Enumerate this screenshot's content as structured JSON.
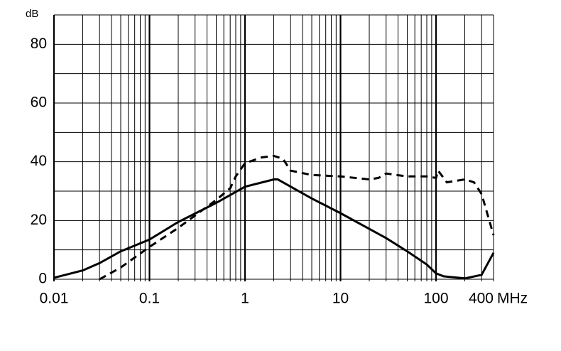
{
  "chart_data": {
    "type": "line",
    "x_unit": "MHz",
    "y_unit": "dB",
    "log_x": true,
    "xlim": [
      0.01,
      400
    ],
    "ylim": [
      0,
      90
    ],
    "xticks": [
      0.01,
      0.1,
      1,
      10,
      100,
      400
    ],
    "yticks": [
      0,
      20,
      40,
      60,
      80
    ],
    "xgrid": [
      0.01,
      0.02,
      0.03,
      0.04,
      0.05,
      0.06,
      0.07,
      0.08,
      0.09,
      0.1,
      0.2,
      0.3,
      0.4,
      0.5,
      0.6,
      0.7,
      0.8,
      0.9,
      1,
      2,
      3,
      4,
      5,
      6,
      7,
      8,
      9,
      10,
      20,
      30,
      40,
      50,
      60,
      70,
      80,
      90,
      100,
      200,
      300,
      400
    ],
    "ygrid": [
      0,
      10,
      20,
      30,
      40,
      50,
      60,
      70,
      80,
      90
    ],
    "series": [
      {
        "color": "#000000",
        "dashed": false,
        "x": [
          0.01,
          0.02,
          0.03,
          0.05,
          0.1,
          0.2,
          0.5,
          1,
          2,
          2.2,
          5,
          10,
          30,
          50,
          80,
          100,
          120,
          200,
          300,
          400
        ],
        "values": [
          0.5,
          3,
          5.5,
          9.5,
          13.5,
          19.5,
          26,
          31.5,
          34,
          34,
          27.5,
          22.5,
          14,
          9.5,
          5,
          2,
          1,
          0.3,
          1.5,
          9
        ]
      },
      {
        "color": "#000000",
        "dashed": true,
        "x": [
          0.03,
          0.05,
          0.1,
          0.2,
          0.5,
          0.7,
          0.8,
          1,
          1.5,
          2,
          2.5,
          3,
          5,
          10,
          20,
          25,
          30,
          50,
          80,
          100,
          105,
          130,
          200,
          250,
          300,
          400
        ],
        "values": [
          0,
          4,
          11,
          17.5,
          27,
          31,
          35,
          39.5,
          41.5,
          42,
          41,
          37,
          35.5,
          35,
          34,
          34.5,
          36,
          35,
          35,
          34.5,
          37,
          33,
          34,
          33,
          29,
          15
        ]
      }
    ]
  }
}
